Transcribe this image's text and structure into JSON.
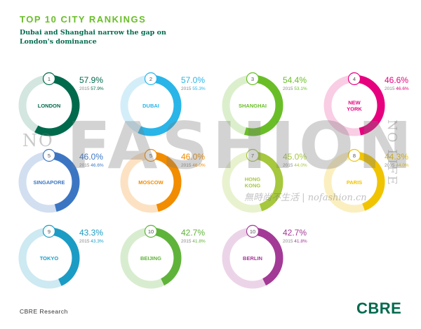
{
  "title": "TOP 10 CITY RANKINGS",
  "subtitle": "Dubai and Shanghai narrow the gap on London's dominance",
  "source": "CBRE Research",
  "logo": "CBRE",
  "watermark": {
    "no": "NO",
    "fashion": "FASHION",
    "life": "NO LIFE",
    "site_cn": "無時尚不生活",
    "site_sep": "|",
    "site_en": "nofashion.cn"
  },
  "chart_data": {
    "type": "donut",
    "title": "TOP 10 CITY RANKINGS",
    "subtitle": "Dubai and Shanghai narrow the gap on London's dominance",
    "prev_year_label": "2015",
    "unit": "%",
    "series": [
      {
        "rank": "1",
        "city": [
          "LONDON"
        ],
        "value": 57.9,
        "value_label": "57.9%",
        "prev_label": "57.9%",
        "color": "#006A4D",
        "track": "#D3E6E0"
      },
      {
        "rank": "2",
        "city": [
          "DUBAI"
        ],
        "value": 57.0,
        "value_label": "57.0%",
        "prev_label": "55.3%",
        "color": "#29B5E8",
        "track": "#D3EEF9"
      },
      {
        "rank": "3",
        "city": [
          "SHANGHAI"
        ],
        "value": 54.4,
        "value_label": "54.4%",
        "prev_label": "53.1%",
        "color": "#69BE28",
        "track": "#DCEFCD"
      },
      {
        "rank": "4",
        "city": [
          "NEW",
          "YORK"
        ],
        "value": 46.6,
        "value_label": "46.6%",
        "prev_label": "46.6%",
        "color": "#E6007E",
        "track": "#F9CDE4"
      },
      {
        "rank": "5",
        "city": [
          "SINGAPORE"
        ],
        "value": 46.0,
        "value_label": "46.0%",
        "prev_label": "46.6%",
        "color": "#3C76C3",
        "track": "#D2DFF1"
      },
      {
        "rank": "5",
        "city": [
          "MOSCOW"
        ],
        "value": 46.0,
        "value_label": "46.0%",
        "prev_label": "46.0%",
        "color": "#F28C00",
        "track": "#FCE2C3"
      },
      {
        "rank": "7",
        "city": [
          "HONG",
          "KONG"
        ],
        "value": 45.0,
        "value_label": "45.0%",
        "prev_label": "44.0%",
        "color": "#A5C83C",
        "track": "#E9F2CF"
      },
      {
        "rank": "8",
        "city": [
          "PARIS"
        ],
        "value": 44.3,
        "value_label": "44.3%",
        "prev_label": "44.0%",
        "color": "#F0C400",
        "track": "#FBEFC0"
      },
      {
        "rank": "9",
        "city": [
          "TOKYO"
        ],
        "value": 43.3,
        "value_label": "43.3%",
        "prev_label": "43.3%",
        "color": "#1B9CC4",
        "track": "#CDE9F2"
      },
      {
        "rank": "10",
        "city": [
          "BEIJING"
        ],
        "value": 42.7,
        "value_label": "42.7%",
        "prev_label": "41.8%",
        "color": "#5FB33A",
        "track": "#D8EDCF"
      },
      {
        "rank": "10",
        "city": [
          "BERLIN"
        ],
        "value": 42.7,
        "value_label": "42.7%",
        "prev_label": "41.8%",
        "color": "#A33A96",
        "track": "#ECD4E8"
      }
    ]
  }
}
